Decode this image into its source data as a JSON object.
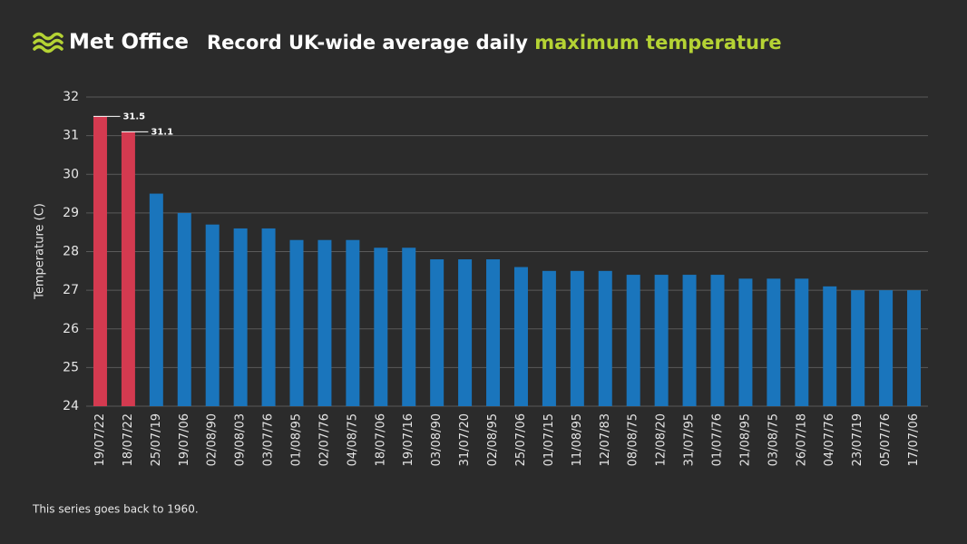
{
  "logo": "Met Office",
  "chart_data": {
    "type": "bar",
    "title": "Record UK-wide average daily",
    "title_highlight": "maximum temperature",
    "y_label": "Temperature (C)",
    "footnote": "This series goes back to 1960.",
    "categories": [
      "19/07/22",
      "18/07/22",
      "25/07/19",
      "19/07/06",
      "02/08/90",
      "09/08/03",
      "03/07/76",
      "01/08/95",
      "02/07/76",
      "04/08/75",
      "18/07/06",
      "19/07/16",
      "03/08/90",
      "31/07/20",
      "02/08/95",
      "25/07/06",
      "01/07/15",
      "11/08/95",
      "12/07/83",
      "08/08/75",
      "12/08/20",
      "31/07/95",
      "01/07/76",
      "21/08/95",
      "03/08/75",
      "26/07/18",
      "04/07/76",
      "23/07/19",
      "05/07/76",
      "17/07/06"
    ],
    "values": [
      31.5,
      31.1,
      29.5,
      29.0,
      28.7,
      28.6,
      28.6,
      28.3,
      28.3,
      28.3,
      28.1,
      28.1,
      27.8,
      27.8,
      27.8,
      27.6,
      27.5,
      27.5,
      27.5,
      27.4,
      27.4,
      27.4,
      27.4,
      27.3,
      27.3,
      27.3,
      27.1,
      27.0,
      27.0,
      27.0
    ],
    "color": "#1a75bc",
    "colors": [
      "#d43a50",
      "#d43a50",
      "#1a75bc",
      "#1a75bc",
      "#1a75bc",
      "#1a75bc",
      "#1a75bc",
      "#1a75bc",
      "#1a75bc",
      "#1a75bc",
      "#1a75bc",
      "#1a75bc",
      "#1a75bc",
      "#1a75bc",
      "#1a75bc",
      "#1a75bc",
      "#1a75bc",
      "#1a75bc",
      "#1a75bc",
      "#1a75bc",
      "#1a75bc",
      "#1a75bc",
      "#1a75bc",
      "#1a75bc",
      "#1a75bc",
      "#1a75bc",
      "#1a75bc",
      "#1a75bc",
      "#1a75bc",
      "#1a75bc"
    ],
    "title_highlight_color": "#b5d334",
    "ylim": [
      24,
      32
    ],
    "yticks": [
      24,
      25,
      26,
      27,
      28,
      29,
      30,
      31,
      32
    ],
    "grid": true
  }
}
